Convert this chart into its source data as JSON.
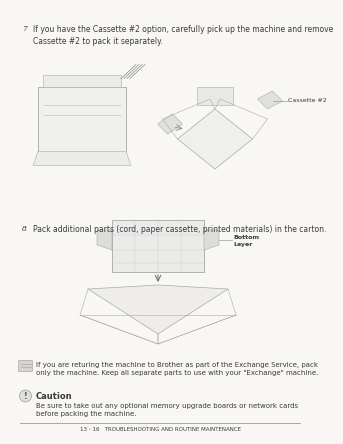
{
  "bg_color": "#f8f7f3",
  "text_color": "#3a3a3a",
  "page_footer": "13 - 16   TROUBLESHOOTING AND ROUTINE MAINTENANCE",
  "step7_num": "7",
  "step7_text": "If you have the Cassette #2 option, carefully pick up the machine and remove\nCassette #2 to pack it separately.",
  "cassette_label": "Cassette #2",
  "step8_num": "8",
  "step8_text": "Pack additional parts (cord, paper cassette, printed materials) in the carton.",
  "bottom_layer_label": "Bottom\nLayer",
  "note_text": "If you are returing the machine to Brother as part of the Exchange Service, pack\nonly the machine. Keep all separate parts to use with your \"Exchange\" machine.",
  "caution_title": "Caution",
  "caution_text": "Be sure to take out any optional memory upgrade boards or network cards\nbefore packing the machine.",
  "font_size_step": 5.5,
  "font_size_label": 4.5,
  "font_size_footer": 4.0,
  "font_size_caution_title": 6.0,
  "font_size_note": 5.0
}
